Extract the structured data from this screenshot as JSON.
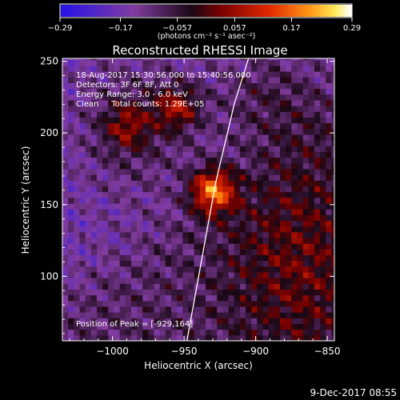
{
  "chart_data": {
    "type": "heatmap",
    "title": "Reconstructed RHESSI Image",
    "xlabel": "Heliocentric X (arcsec)",
    "ylabel": "Heliocentric Y (arcsec)",
    "xlim": [
      -1035,
      -845
    ],
    "ylim": [
      55,
      252
    ],
    "x_ticks": [
      -1000,
      -950,
      -900,
      -850
    ],
    "x_tick_labels": [
      "−1000",
      "−950",
      "−900",
      "−850"
    ],
    "y_ticks": [
      100,
      150,
      200,
      250
    ],
    "y_tick_labels": [
      "100",
      "150",
      "200",
      "250"
    ],
    "colorbar": {
      "min": -0.29,
      "max": 0.29,
      "ticks": [
        -0.29,
        -0.17,
        -0.057,
        0.057,
        0.17,
        0.29
      ],
      "tick_labels": [
        "−0.29",
        "−0.17",
        "−0.057",
        "0.057",
        "0.17",
        "0.29"
      ],
      "unit": "(photons cm⁻² s⁻¹ asec⁻²)"
    },
    "annotations": [
      "18-Aug-2017 15:30:56.000 to 15:40:56.000",
      "Detectors: 3F 6F 8F, Att 0",
      "Energy Range: 3.0 - 6.0 keV",
      "Clean     Total counts: 1.29E+05"
    ],
    "peak_label": "Position of Peak = [-929,164]",
    "peak": [
      -929,
      164
    ],
    "sources": [
      {
        "x": -930,
        "y": 160,
        "amplitude": 0.29
      },
      {
        "x": -955,
        "y": 218,
        "amplitude": 0.17
      },
      {
        "x": -990,
        "y": 205,
        "amplitude": 0.12
      }
    ],
    "limb_curve": [
      [
        -948,
        55
      ],
      [
        -938,
        110
      ],
      [
        -928,
        165
      ],
      [
        -915,
        220
      ],
      [
        -905,
        252
      ]
    ],
    "grid": false
  },
  "footer": {
    "date": "9-Dec-2017 08:55"
  }
}
